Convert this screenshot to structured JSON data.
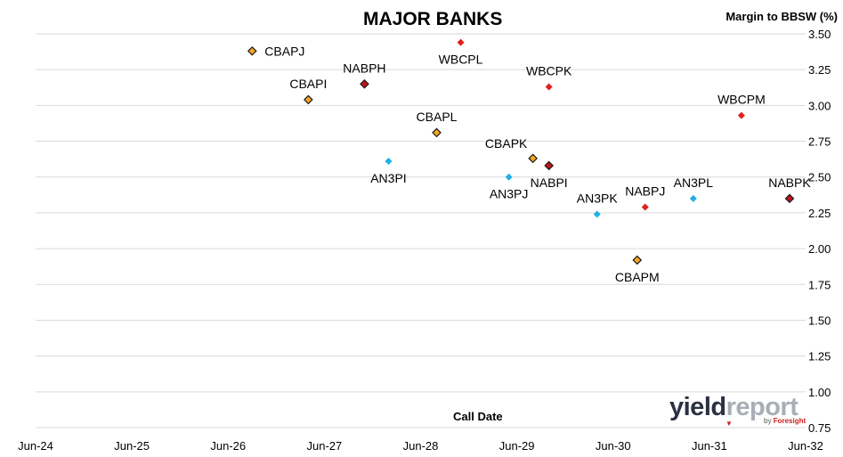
{
  "header": {
    "title": "MAJOR BANKS",
    "y_axis_title": "Margin to BBSW (%)",
    "x_axis_title": "Call Date"
  },
  "logo": {
    "word1": "yield",
    "word2": "report",
    "by": "by",
    "brand": "Foresight",
    "mark": "▼"
  },
  "colors": {
    "orange": "#f5a623",
    "red": "#e0201b",
    "darkred": "#c0141a",
    "blue": "#1fb0e6",
    "grid": "#d9d9d9"
  },
  "chart_data": {
    "type": "scatter",
    "title": "MAJOR BANKS",
    "xlabel": "Call Date",
    "ylabel": "Margin to BBSW (%)",
    "x_ticks": [
      "Jun-24",
      "Jun-25",
      "Jun-26",
      "Jun-27",
      "Jun-28",
      "Jun-29",
      "Jun-30",
      "Jun-31",
      "Jun-32"
    ],
    "y_ticks": [
      "3.50",
      "3.25",
      "3.00",
      "2.75",
      "2.50",
      "2.25",
      "2.00",
      "1.75",
      "1.50",
      "1.25",
      "1.00",
      "0.75"
    ],
    "xlim": [
      "Jun-24",
      "Jun-32"
    ],
    "ylim": [
      0.75,
      3.5
    ],
    "grid": "horizontal",
    "points": [
      {
        "label": "CBAPJ",
        "x": "Sep-26",
        "y": 3.38,
        "style": "outlined",
        "color": "orange",
        "label_pos": "right"
      },
      {
        "label": "CBAPI",
        "x": "Apr-27",
        "y": 3.04,
        "style": "outlined",
        "color": "orange",
        "label_pos": "above"
      },
      {
        "label": "NABPH",
        "x": "Nov-27",
        "y": 3.15,
        "style": "outlined",
        "color": "darkred",
        "label_pos": "above"
      },
      {
        "label": "WBCPL",
        "x": "Nov-28",
        "y": 3.44,
        "style": "solid",
        "color": "red",
        "label_pos": "below"
      },
      {
        "label": "CBAPL",
        "x": "Aug-28",
        "y": 2.81,
        "style": "outlined",
        "color": "orange",
        "label_pos": "above"
      },
      {
        "label": "AN3PI",
        "x": "Feb-28",
        "y": 2.61,
        "style": "solid",
        "color": "blue",
        "label_pos": "below"
      },
      {
        "label": "WBCPK",
        "x": "Oct-29",
        "y": 3.13,
        "style": "solid",
        "color": "red",
        "label_pos": "above"
      },
      {
        "label": "CBAPK",
        "x": "Aug-29",
        "y": 2.63,
        "style": "outlined",
        "color": "orange",
        "label_pos": "aboveleft"
      },
      {
        "label": "AN3PJ",
        "x": "May-29",
        "y": 2.5,
        "style": "solid",
        "color": "blue",
        "label_pos": "below"
      },
      {
        "label": "NABPI",
        "x": "Oct-29",
        "y": 2.58,
        "style": "outlined",
        "color": "darkred",
        "label_pos": "below"
      },
      {
        "label": "AN3PK",
        "x": "Apr-30",
        "y": 2.24,
        "style": "solid",
        "color": "blue",
        "label_pos": "above"
      },
      {
        "label": "NABPJ",
        "x": "Oct-30",
        "y": 2.29,
        "style": "solid",
        "color": "red",
        "label_pos": "above"
      },
      {
        "label": "CBAPM",
        "x": "Sep-30",
        "y": 1.92,
        "style": "outlined",
        "color": "orange",
        "label_pos": "below"
      },
      {
        "label": "AN3PL",
        "x": "Apr-31",
        "y": 2.35,
        "style": "solid",
        "color": "blue",
        "label_pos": "above"
      },
      {
        "label": "WBCPM",
        "x": "Oct-31",
        "y": 2.93,
        "style": "solid",
        "color": "red",
        "label_pos": "above"
      },
      {
        "label": "NABPK",
        "x": "Apr-32",
        "y": 2.35,
        "style": "outlined",
        "color": "darkred",
        "label_pos": "above"
      }
    ]
  }
}
